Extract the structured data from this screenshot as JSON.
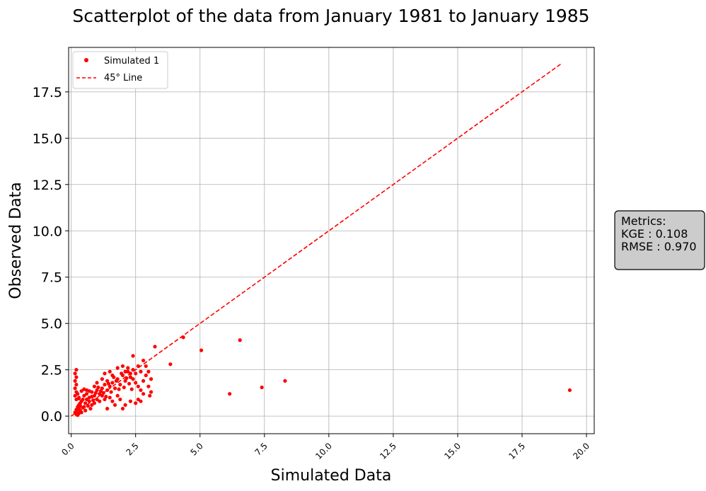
{
  "chart_data": {
    "type": "scatter",
    "title": "Scatterplot of the data from January 1981 to January 1985",
    "xlabel": "Simulated Data",
    "ylabel": "Observed Data",
    "xlim": [
      -0.1,
      20.3
    ],
    "ylim": [
      -0.95,
      19.9
    ],
    "xticks": [
      "0.0",
      "2.5",
      "5.0",
      "7.5",
      "10.0",
      "12.5",
      "15.0",
      "17.5",
      "20.0"
    ],
    "yticks": [
      "0.0",
      "2.5",
      "5.0",
      "7.5",
      "10.0",
      "12.5",
      "15.0",
      "17.5"
    ],
    "grid": true,
    "legend_position": "top-left",
    "legend": [
      {
        "label": "Simulated 1",
        "marker": "dot",
        "color": "#ff0000"
      },
      {
        "label": "45° Line",
        "marker": "dashed-line",
        "color": "#ff0000"
      }
    ],
    "line_45": {
      "x": [
        0,
        19.0
      ],
      "y": [
        0,
        19.0
      ]
    },
    "series": [
      {
        "name": "Simulated 1",
        "color": "#ff0000",
        "points": [
          [
            0.2,
            0.1
          ],
          [
            0.25,
            0.05
          ],
          [
            0.3,
            0.15
          ],
          [
            0.15,
            0.2
          ],
          [
            0.2,
            0.35
          ],
          [
            0.3,
            0.4
          ],
          [
            0.35,
            0.3
          ],
          [
            0.4,
            0.2
          ],
          [
            0.25,
            0.5
          ],
          [
            0.3,
            0.6
          ],
          [
            0.35,
            0.7
          ],
          [
            0.4,
            0.8
          ],
          [
            0.45,
            0.9
          ],
          [
            0.2,
            0.9
          ],
          [
            0.15,
            1.1
          ],
          [
            0.2,
            1.3
          ],
          [
            0.15,
            1.5
          ],
          [
            0.2,
            1.7
          ],
          [
            0.15,
            1.9
          ],
          [
            0.2,
            2.1
          ],
          [
            0.15,
            2.3
          ],
          [
            0.2,
            2.5
          ],
          [
            0.25,
            1.2
          ],
          [
            0.3,
            1.0
          ],
          [
            0.5,
            0.5
          ],
          [
            0.55,
            0.7
          ],
          [
            0.6,
            0.9
          ],
          [
            0.5,
            1.1
          ],
          [
            0.6,
            1.2
          ],
          [
            0.7,
            1.0
          ],
          [
            0.7,
            0.8
          ],
          [
            0.8,
            1.3
          ],
          [
            0.9,
            1.1
          ],
          [
            1.0,
            1.4
          ],
          [
            1.1,
            1.2
          ],
          [
            0.9,
            1.6
          ],
          [
            1.0,
            1.8
          ],
          [
            1.2,
            1.5
          ],
          [
            1.3,
            1.7
          ],
          [
            1.4,
            1.4
          ],
          [
            1.5,
            1.6
          ],
          [
            1.4,
            1.9
          ],
          [
            1.6,
            1.8
          ],
          [
            1.7,
            1.5
          ],
          [
            1.8,
            2.0
          ],
          [
            1.9,
            1.7
          ],
          [
            2.0,
            2.2
          ],
          [
            2.1,
            1.9
          ],
          [
            2.2,
            2.4
          ],
          [
            2.3,
            2.1
          ],
          [
            2.4,
            2.5
          ],
          [
            2.5,
            2.3
          ],
          [
            2.6,
            2.7
          ],
          [
            2.7,
            2.4
          ],
          [
            2.4,
            2.0
          ],
          [
            2.5,
            1.8
          ],
          [
            2.6,
            1.6
          ],
          [
            2.7,
            1.4
          ],
          [
            2.8,
            1.2
          ],
          [
            2.6,
            0.9
          ],
          [
            2.7,
            0.8
          ],
          [
            2.5,
            0.7
          ],
          [
            2.3,
            0.8
          ],
          [
            2.1,
            0.6
          ],
          [
            2.0,
            0.4
          ],
          [
            1.9,
            0.9
          ],
          [
            1.8,
            1.1
          ],
          [
            1.7,
            0.6
          ],
          [
            1.6,
            0.8
          ],
          [
            1.5,
            1.0
          ],
          [
            1.4,
            0.4
          ],
          [
            1.3,
            0.9
          ],
          [
            1.2,
            1.1
          ],
          [
            1.1,
            0.8
          ],
          [
            1.0,
            0.9
          ],
          [
            0.9,
            0.7
          ],
          [
            0.8,
            0.6
          ],
          [
            1.2,
            2.0
          ],
          [
            1.5,
            2.4
          ],
          [
            1.8,
            2.6
          ],
          [
            2.0,
            2.7
          ],
          [
            2.1,
            2.4
          ],
          [
            2.2,
            2.6
          ],
          [
            2.3,
            2.3
          ],
          [
            2.4,
            3.25
          ],
          [
            2.8,
            3.0
          ],
          [
            2.9,
            2.7
          ],
          [
            3.0,
            2.4
          ],
          [
            3.1,
            2.0
          ],
          [
            3.0,
            1.6
          ],
          [
            3.1,
            1.3
          ],
          [
            3.05,
            1.1
          ],
          [
            2.9,
            2.2
          ],
          [
            2.8,
            1.9
          ],
          [
            3.25,
            3.75
          ],
          [
            3.85,
            2.8
          ],
          [
            4.35,
            4.25
          ],
          [
            5.05,
            3.55
          ],
          [
            6.15,
            1.2
          ],
          [
            6.55,
            4.1
          ],
          [
            7.4,
            1.55
          ],
          [
            8.3,
            1.9
          ],
          [
            19.35,
            1.4
          ],
          [
            0.35,
            0.55
          ],
          [
            0.45,
            0.45
          ],
          [
            0.55,
            0.3
          ],
          [
            0.65,
            0.55
          ],
          [
            0.75,
            0.4
          ],
          [
            0.85,
            0.85
          ],
          [
            0.95,
            1.25
          ],
          [
            1.05,
            1.55
          ],
          [
            1.15,
            1.35
          ],
          [
            1.25,
            1.25
          ],
          [
            1.35,
            1.05
          ],
          [
            1.45,
            1.75
          ],
          [
            1.55,
            1.3
          ],
          [
            1.65,
            2.1
          ],
          [
            1.75,
            1.9
          ],
          [
            1.85,
            1.45
          ],
          [
            1.95,
            2.3
          ],
          [
            2.05,
            1.55
          ],
          [
            2.15,
            2.05
          ],
          [
            2.25,
            1.75
          ],
          [
            2.35,
            1.45
          ],
          [
            0.4,
            1.35
          ],
          [
            0.5,
            1.45
          ],
          [
            0.3,
            0.95
          ],
          [
            0.6,
            1.4
          ],
          [
            0.7,
            1.35
          ],
          [
            0.8,
            1.05
          ],
          [
            1.3,
            2.3
          ],
          [
            1.6,
            2.2
          ]
        ]
      }
    ],
    "metrics_box": {
      "title": "Metrics:",
      "lines": [
        "KGE : 0.108",
        "RMSE : 0.970"
      ]
    }
  }
}
